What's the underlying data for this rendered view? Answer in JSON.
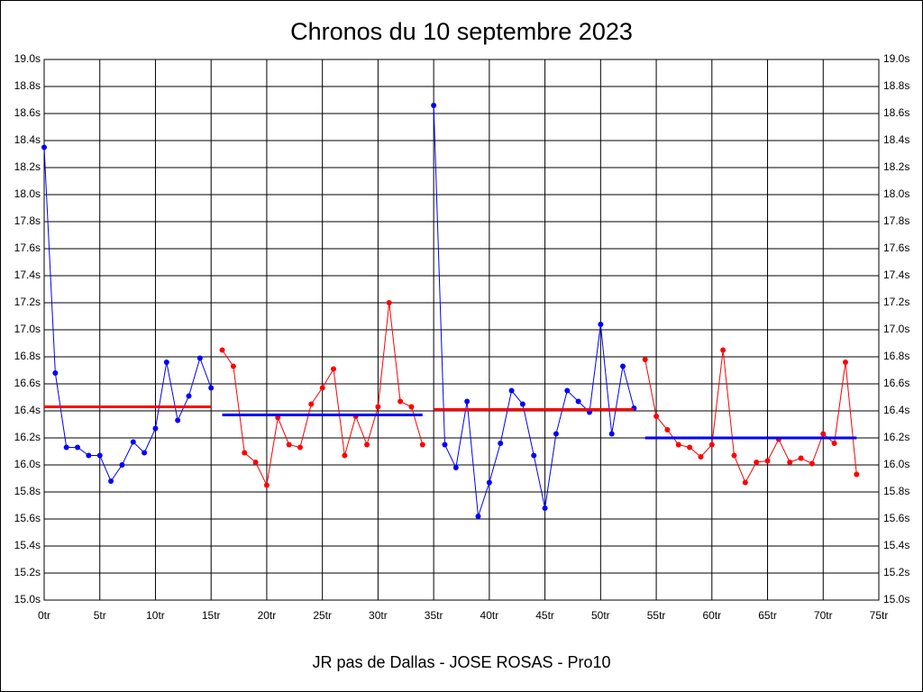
{
  "chart_data": {
    "type": "line",
    "title": "Chronos du 10 septembre 2023",
    "caption": "JR pas de Dallas - JOSE ROSAS - Pro10",
    "xlim": [
      0,
      75
    ],
    "ylim": [
      15,
      19
    ],
    "grid": true,
    "xticks": [
      {
        "value": 0,
        "label": "0tr"
      },
      {
        "value": 5,
        "label": "5tr"
      },
      {
        "value": 10,
        "label": "10tr"
      },
      {
        "value": 15,
        "label": "15tr"
      },
      {
        "value": 20,
        "label": "20tr"
      },
      {
        "value": 25,
        "label": "25tr"
      },
      {
        "value": 30,
        "label": "30tr"
      },
      {
        "value": 35,
        "label": "35tr"
      },
      {
        "value": 40,
        "label": "40tr"
      },
      {
        "value": 45,
        "label": "45tr"
      },
      {
        "value": 50,
        "label": "50tr"
      },
      {
        "value": 55,
        "label": "55tr"
      },
      {
        "value": 60,
        "label": "60tr"
      },
      {
        "value": 65,
        "label": "65tr"
      },
      {
        "value": 70,
        "label": "70tr"
      },
      {
        "value": 75,
        "label": "75tr"
      }
    ],
    "yticks": [
      {
        "value": 15,
        "label": "15.0s"
      },
      {
        "value": 15.2,
        "label": "15.2s"
      },
      {
        "value": 15.4,
        "label": "15.4s"
      },
      {
        "value": 15.6,
        "label": "15.6s"
      },
      {
        "value": 15.8,
        "label": "15.8s"
      },
      {
        "value": 16,
        "label": "16.0s"
      },
      {
        "value": 16.2,
        "label": "16.2s"
      },
      {
        "value": 16.4,
        "label": "16.4s"
      },
      {
        "value": 16.6,
        "label": "16.6s"
      },
      {
        "value": 16.8,
        "label": "16.8s"
      },
      {
        "value": 17,
        "label": "17.0s"
      },
      {
        "value": 17.2,
        "label": "17.2s"
      },
      {
        "value": 17.4,
        "label": "17.4s"
      },
      {
        "value": 17.6,
        "label": "17.6s"
      },
      {
        "value": 17.8,
        "label": "17.8s"
      },
      {
        "value": 18,
        "label": "18.0s"
      },
      {
        "value": 18.2,
        "label": "18.2s"
      },
      {
        "value": 18.4,
        "label": "18.4s"
      },
      {
        "value": 18.6,
        "label": "18.6s"
      },
      {
        "value": 18.8,
        "label": "18.8s"
      },
      {
        "value": 19,
        "label": "19.0s"
      }
    ],
    "series": [
      {
        "color": "#0000ff",
        "mean": 16.43,
        "mean_color": "#ff0000",
        "x": [
          0,
          1,
          2,
          3,
          4,
          5,
          6,
          7,
          8,
          9,
          10,
          11,
          12,
          13,
          14,
          15
        ],
        "values": [
          18.35,
          16.68,
          16.13,
          16.13,
          16.07,
          16.07,
          15.88,
          16.0,
          16.17,
          16.09,
          16.27,
          16.76,
          16.33,
          16.51,
          16.79,
          16.57
        ]
      },
      {
        "color": "#ff0000",
        "mean": 16.37,
        "mean_color": "#0000ff",
        "x": [
          16,
          17,
          18,
          19,
          20,
          21,
          22,
          23,
          24,
          25,
          26,
          27,
          28,
          29,
          30,
          31,
          32,
          33,
          34
        ],
        "values": [
          16.85,
          16.73,
          16.09,
          16.02,
          15.85,
          16.35,
          16.15,
          16.13,
          16.45,
          16.57,
          16.71,
          16.07,
          16.36,
          16.15,
          16.43,
          17.2,
          16.47,
          16.43,
          16.15
        ]
      },
      {
        "color": "#0000ff",
        "mean": 16.41,
        "mean_color": "#ff0000",
        "x": [
          35,
          36,
          37,
          38,
          39,
          40,
          41,
          42,
          43,
          44,
          45,
          46,
          47,
          48,
          49,
          50,
          51,
          52,
          53
        ],
        "values": [
          18.66,
          16.15,
          15.98,
          16.47,
          15.62,
          15.87,
          16.16,
          16.55,
          16.45,
          16.07,
          15.68,
          16.23,
          16.55,
          16.47,
          16.39,
          17.04,
          16.23,
          16.73,
          16.42
        ]
      },
      {
        "color": "#ff0000",
        "mean": 16.2,
        "mean_color": "#0000ff",
        "x": [
          54,
          55,
          56,
          57,
          58,
          59,
          60,
          61,
          62,
          63,
          64,
          65,
          66,
          67,
          68,
          69,
          70,
          71,
          72,
          73
        ],
        "values": [
          16.78,
          16.36,
          16.26,
          16.15,
          16.13,
          16.06,
          16.15,
          16.85,
          16.07,
          15.87,
          16.02,
          16.03,
          16.19,
          16.02,
          16.05,
          16.01,
          16.23,
          16.16,
          16.76,
          15.93
        ]
      }
    ]
  }
}
